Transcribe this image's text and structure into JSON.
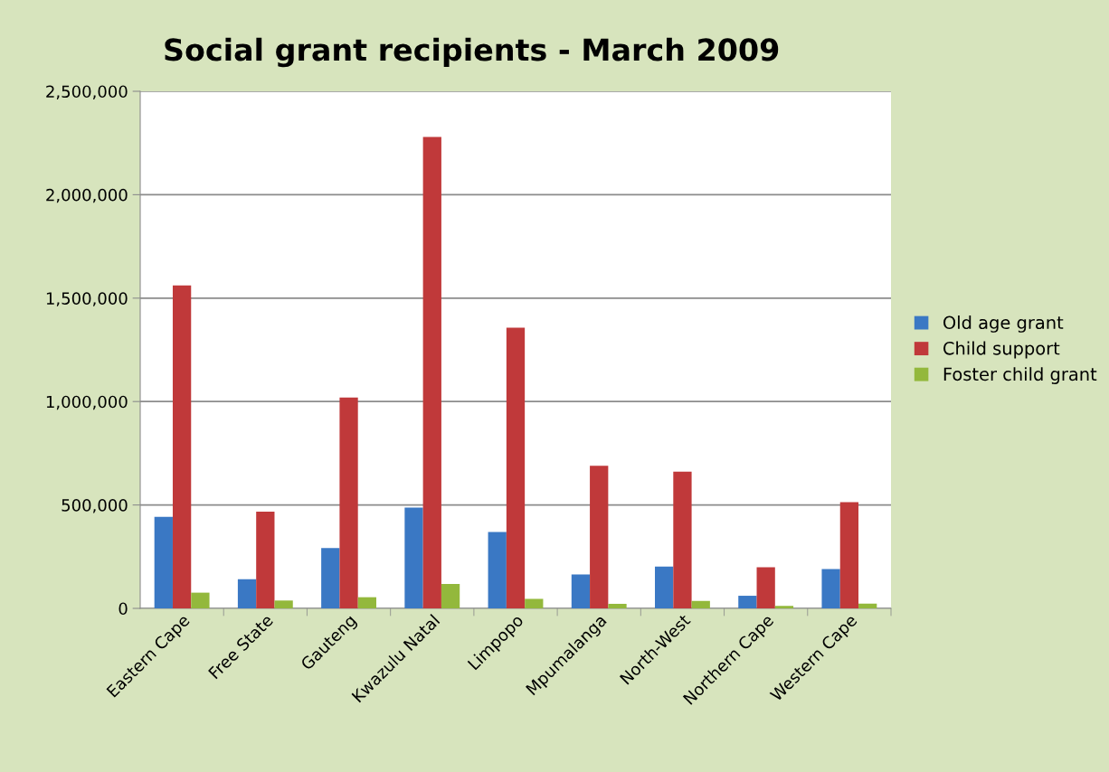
{
  "chart_data": {
    "type": "bar",
    "title": "Social grant recipients - March 2009",
    "categories": [
      "Eastern Cape",
      "Free State",
      "Gauteng",
      "Kwazulu Natal",
      "Limpopo",
      "Mpumalanga",
      "North-West",
      "Northern Cape",
      "Western Cape"
    ],
    "series": [
      {
        "name": "Old age grant",
        "color": "#3a78c4",
        "values": [
          443000,
          141000,
          292000,
          487000,
          369000,
          164000,
          202000,
          61000,
          190000
        ]
      },
      {
        "name": "Child support",
        "color": "#c0393a",
        "values": [
          1561000,
          468000,
          1019000,
          2279000,
          1357000,
          689000,
          661000,
          199000,
          514000
        ]
      },
      {
        "name": "Foster child grant",
        "color": "#93b83c",
        "values": [
          76000,
          38000,
          54000,
          118000,
          46000,
          22000,
          36000,
          12000,
          23000
        ]
      }
    ],
    "ylim": [
      0,
      2500000
    ],
    "yticks": [
      {
        "value": 0,
        "label": "0"
      },
      {
        "value": 500000,
        "label": "500,000"
      },
      {
        "value": 1000000,
        "label": "1,000,000"
      },
      {
        "value": 1500000,
        "label": "1,500,000"
      },
      {
        "value": 2000000,
        "label": "2,000,000"
      },
      {
        "value": 2500000,
        "label": "2,500,000"
      }
    ],
    "grid": "y",
    "legend": "right"
  }
}
